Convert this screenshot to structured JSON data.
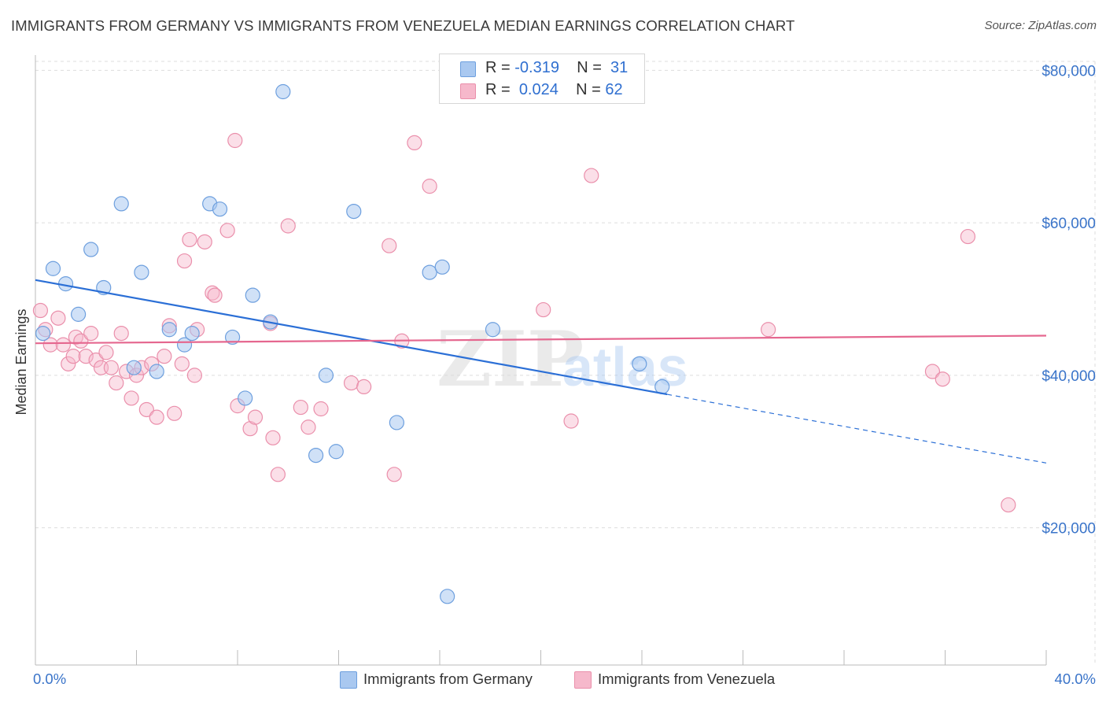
{
  "header": {
    "title": "IMMIGRANTS FROM GERMANY VS IMMIGRANTS FROM VENEZUELA MEDIAN EARNINGS CORRELATION CHART",
    "source": "Source: ZipAtlas.com"
  },
  "watermark": {
    "zip": "ZIP",
    "atlas": "atlas"
  },
  "legend": {
    "rows": [
      {
        "r_label": "R =",
        "r_value": "-0.319",
        "n_label": "N =",
        "n_value": "31",
        "color": "#a9c8f0"
      },
      {
        "r_label": "R =",
        "r_value": "0.024",
        "n_label": "N =",
        "n_value": "62",
        "color": "#f6b8cb"
      }
    ]
  },
  "bottom_legend": {
    "germany": "Immigrants from Germany",
    "venezuela": "Immigrants from Venezuela"
  },
  "colors": {
    "germany_fill": "#a9c8f0",
    "germany_stroke": "#6d9fde",
    "germany_line": "#2b6fd6",
    "venezuela_fill": "#f6b8cb",
    "venezuela_stroke": "#ea8fab",
    "venezuela_line": "#e5678f",
    "axis_value": "#3a74c9",
    "grid": "#dddddd"
  },
  "chart_data": {
    "type": "scatter",
    "title": "IMMIGRANTS FROM GERMANY VS IMMIGRANTS FROM VENEZUELA MEDIAN EARNINGS CORRELATION CHART",
    "xlabel": "",
    "ylabel": "Median Earnings",
    "xlim": [
      0,
      40
    ],
    "ylim": [
      2000,
      82000
    ],
    "x_tick_labels": [
      "0.0%",
      "40.0%"
    ],
    "y_ticks": [
      20000,
      40000,
      60000,
      80000
    ],
    "y_tick_labels": [
      "$20,000",
      "$40,000",
      "$60,000",
      "$80,000"
    ],
    "grid": true,
    "legend_position": "top-center",
    "series": [
      {
        "name": "Immigrants from Germany",
        "r": -0.319,
        "n": 31,
        "trend": {
          "x_start": 0,
          "y_start": 52500,
          "x_solid_end": 25,
          "x_end": 40,
          "y_end": 28500
        },
        "points": [
          [
            0.3,
            45500
          ],
          [
            0.7,
            54000
          ],
          [
            1.2,
            52000
          ],
          [
            1.7,
            48000
          ],
          [
            2.2,
            56500
          ],
          [
            2.7,
            51500
          ],
          [
            3.4,
            62500
          ],
          [
            3.9,
            41000
          ],
          [
            4.2,
            53500
          ],
          [
            4.8,
            40500
          ],
          [
            5.3,
            46000
          ],
          [
            5.9,
            44000
          ],
          [
            6.2,
            45500
          ],
          [
            6.9,
            62500
          ],
          [
            7.3,
            61800
          ],
          [
            7.8,
            45000
          ],
          [
            8.3,
            37000
          ],
          [
            8.6,
            50500
          ],
          [
            9.3,
            47000
          ],
          [
            9.8,
            77200
          ],
          [
            11.1,
            29500
          ],
          [
            11.5,
            40000
          ],
          [
            11.9,
            30000
          ],
          [
            12.6,
            61500
          ],
          [
            14.3,
            33800
          ],
          [
            15.6,
            53500
          ],
          [
            16.1,
            54200
          ],
          [
            16.3,
            11000
          ],
          [
            18.1,
            46000
          ],
          [
            23.9,
            41500
          ],
          [
            24.8,
            38500
          ]
        ]
      },
      {
        "name": "Immigrants from Venezuela",
        "r": 0.024,
        "n": 62,
        "trend": {
          "x_start": 0,
          "y_start": 44200,
          "x_end": 40,
          "y_end": 45200
        },
        "points": [
          [
            0.2,
            48500
          ],
          [
            0.4,
            46000
          ],
          [
            0.6,
            44000
          ],
          [
            0.9,
            47500
          ],
          [
            1.1,
            44000
          ],
          [
            1.3,
            41500
          ],
          [
            1.5,
            42500
          ],
          [
            1.6,
            45000
          ],
          [
            1.8,
            44500
          ],
          [
            2.0,
            42500
          ],
          [
            2.2,
            45500
          ],
          [
            2.4,
            42000
          ],
          [
            2.6,
            41000
          ],
          [
            2.8,
            43000
          ],
          [
            3.0,
            41000
          ],
          [
            3.2,
            39000
          ],
          [
            3.4,
            45500
          ],
          [
            3.6,
            40500
          ],
          [
            3.8,
            37000
          ],
          [
            4.0,
            40000
          ],
          [
            4.2,
            41000
          ],
          [
            4.4,
            35500
          ],
          [
            4.6,
            41500
          ],
          [
            4.8,
            34500
          ],
          [
            5.1,
            42500
          ],
          [
            5.3,
            46500
          ],
          [
            5.5,
            35000
          ],
          [
            5.8,
            41500
          ],
          [
            5.9,
            55000
          ],
          [
            6.1,
            57800
          ],
          [
            6.3,
            40000
          ],
          [
            6.4,
            46000
          ],
          [
            6.7,
            57500
          ],
          [
            7.0,
            50800
          ],
          [
            7.1,
            50500
          ],
          [
            7.6,
            59000
          ],
          [
            7.9,
            70800
          ],
          [
            8.0,
            36000
          ],
          [
            8.5,
            33000
          ],
          [
            8.7,
            34500
          ],
          [
            9.3,
            46800
          ],
          [
            9.4,
            31800
          ],
          [
            9.6,
            27000
          ],
          [
            10.0,
            59600
          ],
          [
            10.5,
            35800
          ],
          [
            10.8,
            33200
          ],
          [
            11.3,
            35600
          ],
          [
            14.0,
            57000
          ],
          [
            14.2,
            27000
          ],
          [
            14.5,
            44500
          ],
          [
            15.0,
            70500
          ],
          [
            15.6,
            64800
          ],
          [
            20.1,
            48600
          ],
          [
            21.2,
            34000
          ],
          [
            22.0,
            66200
          ],
          [
            29.0,
            46000
          ],
          [
            35.5,
            40500
          ],
          [
            35.9,
            39500
          ],
          [
            36.9,
            58200
          ],
          [
            38.5,
            23000
          ],
          [
            12.5,
            39000
          ],
          [
            13.0,
            38500
          ]
        ]
      }
    ]
  }
}
